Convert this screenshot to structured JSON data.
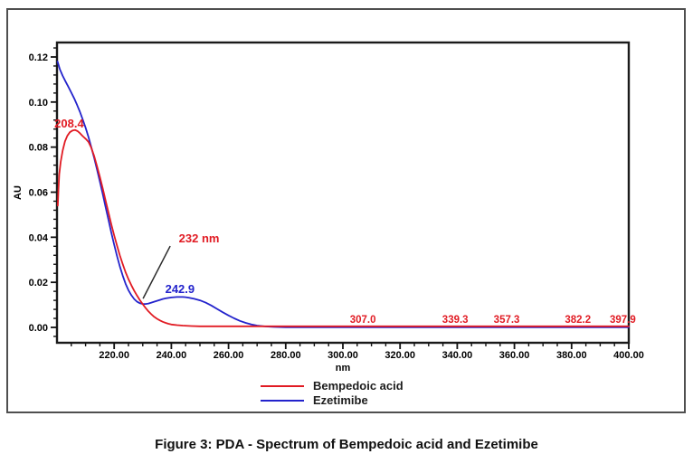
{
  "figure": {
    "caption": "Figure 3: PDA - Spectrum of Bempedoic acid and Ezetimibe"
  },
  "chart_data": {
    "type": "line",
    "title": "",
    "xlabel": "nm",
    "ylabel": "AU",
    "xlim": [
      200,
      400
    ],
    "ylim": [
      -0.0068,
      0.1265
    ],
    "grid": false,
    "legend_position": "bottom-center",
    "x_major_ticks": [
      220,
      240,
      260,
      280,
      300,
      320,
      340,
      360,
      380,
      400
    ],
    "x_minor_step": 5,
    "y_major_ticks": [
      0.0,
      0.02,
      0.04,
      0.06,
      0.08,
      0.1,
      0.12
    ],
    "y_minor_step": 0.004,
    "frame_color": "#1a1a1a",
    "tick_color": "#111111",
    "series": [
      {
        "name": "Bempedoic acid",
        "color": "#e11b23",
        "points": [
          [
            200.3,
            0.054
          ],
          [
            200.5,
            0.061
          ],
          [
            200.8,
            0.068
          ],
          [
            201.3,
            0.0735
          ],
          [
            202.0,
            0.0785
          ],
          [
            202.8,
            0.0825
          ],
          [
            203.6,
            0.085
          ],
          [
            204.5,
            0.0866
          ],
          [
            205.5,
            0.0874
          ],
          [
            206.3,
            0.0876
          ],
          [
            207.2,
            0.0871
          ],
          [
            208.0,
            0.0862
          ],
          [
            209.0,
            0.0849
          ],
          [
            210.0,
            0.0837
          ],
          [
            211.0,
            0.0823
          ],
          [
            212.0,
            0.0797
          ],
          [
            213.0,
            0.076
          ],
          [
            214.0,
            0.0716
          ],
          [
            215.0,
            0.0668
          ],
          [
            216.0,
            0.0616
          ],
          [
            217.0,
            0.0563
          ],
          [
            218.0,
            0.051
          ],
          [
            219.0,
            0.0458
          ],
          [
            220.0,
            0.0408
          ],
          [
            221.0,
            0.0362
          ],
          [
            222.0,
            0.0319
          ],
          [
            223.0,
            0.028
          ],
          [
            224.0,
            0.0245
          ],
          [
            225.0,
            0.0214
          ],
          [
            226.0,
            0.0187
          ],
          [
            227.0,
            0.0163
          ],
          [
            228.0,
            0.0141
          ],
          [
            229.0,
            0.0121
          ],
          [
            230.0,
            0.0103
          ],
          [
            231.0,
            0.0086
          ],
          [
            232.0,
            0.0071
          ],
          [
            233.0,
            0.0058
          ],
          [
            234.0,
            0.0047
          ],
          [
            235.0,
            0.0038
          ],
          [
            236.0,
            0.0031
          ],
          [
            237.0,
            0.0025
          ],
          [
            238.0,
            0.002
          ],
          [
            239.0,
            0.0016
          ],
          [
            240.0,
            0.0013
          ],
          [
            242.0,
            0.001
          ],
          [
            244.0,
            0.0008
          ],
          [
            247.0,
            0.0006
          ],
          [
            250.0,
            0.0005
          ],
          [
            260.0,
            0.0005
          ],
          [
            270.0,
            0.0005
          ],
          [
            285.0,
            0.0005
          ],
          [
            300.0,
            0.0005
          ],
          [
            320.0,
            0.0005
          ],
          [
            340.0,
            0.0005
          ],
          [
            360.0,
            0.0005
          ],
          [
            380.0,
            0.0005
          ],
          [
            400.0,
            0.0005
          ]
        ]
      },
      {
        "name": "Ezetimibe",
        "color": "#2323cc",
        "points": [
          [
            200.2,
            0.118
          ],
          [
            201.0,
            0.1145
          ],
          [
            202.0,
            0.1116
          ],
          [
            203.0,
            0.1091
          ],
          [
            204.0,
            0.1067
          ],
          [
            205.0,
            0.1042
          ],
          [
            206.0,
            0.1016
          ],
          [
            207.0,
            0.0988
          ],
          [
            208.0,
            0.0957
          ],
          [
            209.0,
            0.0923
          ],
          [
            210.0,
            0.0886
          ],
          [
            211.0,
            0.0845
          ],
          [
            212.0,
            0.08
          ],
          [
            213.0,
            0.0752
          ],
          [
            214.0,
            0.0701
          ],
          [
            215.0,
            0.0647
          ],
          [
            216.0,
            0.0591
          ],
          [
            217.0,
            0.0534
          ],
          [
            218.0,
            0.0477
          ],
          [
            219.0,
            0.0421
          ],
          [
            220.0,
            0.0367
          ],
          [
            221.0,
            0.0316
          ],
          [
            222.0,
            0.027
          ],
          [
            223.0,
            0.0229
          ],
          [
            224.0,
            0.0194
          ],
          [
            225.0,
            0.0165
          ],
          [
            226.0,
            0.0143
          ],
          [
            227.0,
            0.0126
          ],
          [
            228.0,
            0.0114
          ],
          [
            229.0,
            0.0107
          ],
          [
            230.0,
            0.0104
          ],
          [
            231.0,
            0.0104
          ],
          [
            232.0,
            0.0106
          ],
          [
            233.0,
            0.011
          ],
          [
            234.0,
            0.0114
          ],
          [
            235.0,
            0.0118
          ],
          [
            236.0,
            0.0122
          ],
          [
            237.0,
            0.0126
          ],
          [
            238.0,
            0.0129
          ],
          [
            239.0,
            0.0131
          ],
          [
            240.0,
            0.0133
          ],
          [
            241.0,
            0.0134
          ],
          [
            242.0,
            0.0135
          ],
          [
            243.0,
            0.0135
          ],
          [
            244.0,
            0.0135
          ],
          [
            245.0,
            0.0134
          ],
          [
            246.0,
            0.0132
          ],
          [
            248.0,
            0.0127
          ],
          [
            250.0,
            0.012
          ],
          [
            252.0,
            0.011
          ],
          [
            254.0,
            0.0097
          ],
          [
            256.0,
            0.0082
          ],
          [
            258.0,
            0.0067
          ],
          [
            260.0,
            0.0053
          ],
          [
            262.0,
            0.004
          ],
          [
            264.0,
            0.0029
          ],
          [
            266.0,
            0.002
          ],
          [
            268.0,
            0.0013
          ],
          [
            270.0,
            0.0008
          ],
          [
            273.0,
            0.0004
          ],
          [
            276.0,
            0.0002
          ],
          [
            280.0,
            0.0001
          ],
          [
            290.0,
            0.0001
          ],
          [
            300.0,
            0.0001
          ],
          [
            320.0,
            0.0001
          ],
          [
            340.0,
            0.0001
          ],
          [
            360.0,
            0.0001
          ],
          [
            380.0,
            0.0001
          ],
          [
            400.0,
            0.0001
          ]
        ]
      }
    ],
    "annotations": [
      {
        "text": "208.4",
        "color": "#e11b23",
        "x": 199.1,
        "y": 0.0887,
        "anchor": "start",
        "size": 13
      },
      {
        "text": "232 nm",
        "color": "#e11b23",
        "x": 249.7,
        "y": 0.0377,
        "anchor": "middle",
        "size": 13
      },
      {
        "text": "242.9",
        "color": "#2323cc",
        "x": 243.0,
        "y": 0.0152,
        "anchor": "middle",
        "size": 13
      },
      {
        "text": "307.0",
        "color": "#e11b23",
        "x": 307.0,
        "y": 0.002,
        "anchor": "middle",
        "size": 11.5
      },
      {
        "text": "339.3",
        "color": "#e11b23",
        "x": 339.3,
        "y": 0.002,
        "anchor": "middle",
        "size": 11.5
      },
      {
        "text": "357.3",
        "color": "#e11b23",
        "x": 357.3,
        "y": 0.002,
        "anchor": "middle",
        "size": 11.5
      },
      {
        "text": "382.2",
        "color": "#e11b23",
        "x": 382.2,
        "y": 0.002,
        "anchor": "middle",
        "size": 11.5
      },
      {
        "text": "397.9",
        "color": "#e11b23",
        "x": 397.9,
        "y": 0.002,
        "anchor": "middle",
        "size": 11.5
      }
    ],
    "leader_line": {
      "x1": 239.6,
      "y1": 0.0361,
      "x2": 230.1,
      "y2": 0.0128,
      "color": "#2b2b2b"
    }
  }
}
